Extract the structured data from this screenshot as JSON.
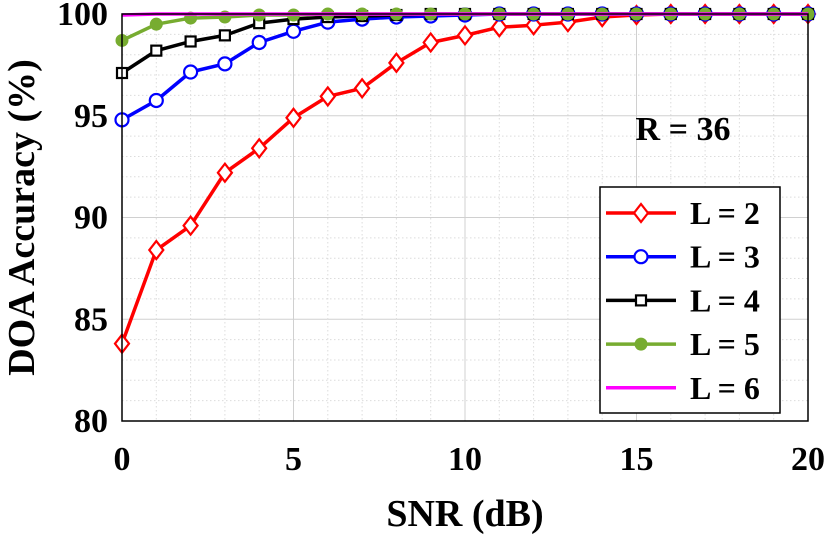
{
  "chart_data": {
    "type": "line",
    "title": "",
    "xlabel": "SNR (dB)",
    "ylabel": "DOA Accuracy (%)",
    "xlim": [
      0,
      20
    ],
    "ylim": [
      80,
      100
    ],
    "xticks": [
      0,
      5,
      10,
      15,
      20
    ],
    "yticks": [
      80,
      85,
      90,
      95,
      100
    ],
    "xtick_labels": [
      "0",
      "5",
      "10",
      "15",
      "20"
    ],
    "ytick_labels": [
      "80",
      "85",
      "90",
      "95",
      "100"
    ],
    "grid": true,
    "annotation": "R = 36",
    "legend_position": "bottom-right",
    "x": [
      0,
      1,
      2,
      3,
      4,
      5,
      6,
      7,
      8,
      9,
      10,
      11,
      12,
      13,
      14,
      15,
      16,
      17,
      18,
      19,
      20
    ],
    "series": [
      {
        "name": "L = 2",
        "color": "#ff0000",
        "marker": "diamond",
        "values": [
          83.8,
          88.4,
          89.6,
          92.2,
          93.4,
          94.9,
          95.95,
          96.35,
          97.6,
          98.6,
          98.95,
          99.35,
          99.45,
          99.6,
          99.85,
          99.95,
          100,
          100,
          100,
          100,
          100
        ]
      },
      {
        "name": "L = 3",
        "color": "#0000ff",
        "marker": "circle",
        "values": [
          94.8,
          95.75,
          97.15,
          97.55,
          98.6,
          99.15,
          99.6,
          99.75,
          99.85,
          99.9,
          99.95,
          100,
          100,
          100,
          100,
          100,
          100,
          100,
          100,
          100,
          100
        ]
      },
      {
        "name": "L = 4",
        "color": "#000000",
        "marker": "square",
        "values": [
          97.1,
          98.2,
          98.65,
          98.95,
          99.55,
          99.75,
          99.85,
          99.9,
          99.95,
          100,
          100,
          100,
          100,
          100,
          100,
          100,
          100,
          100,
          100,
          100,
          100
        ]
      },
      {
        "name": "L = 5",
        "color": "#77ac30",
        "marker": "dot",
        "values": [
          98.7,
          99.5,
          99.8,
          99.85,
          99.95,
          99.95,
          100,
          100,
          100,
          100,
          100,
          100,
          100,
          100,
          100,
          100,
          100,
          100,
          100,
          100,
          100
        ]
      },
      {
        "name": "L = 6",
        "color": "#ff00ff",
        "marker": "none",
        "values": [
          99.95,
          100,
          100,
          100,
          100,
          100,
          100,
          100,
          100,
          100,
          100,
          100,
          100,
          100,
          100,
          100,
          100,
          100,
          100,
          100,
          100
        ]
      }
    ]
  }
}
